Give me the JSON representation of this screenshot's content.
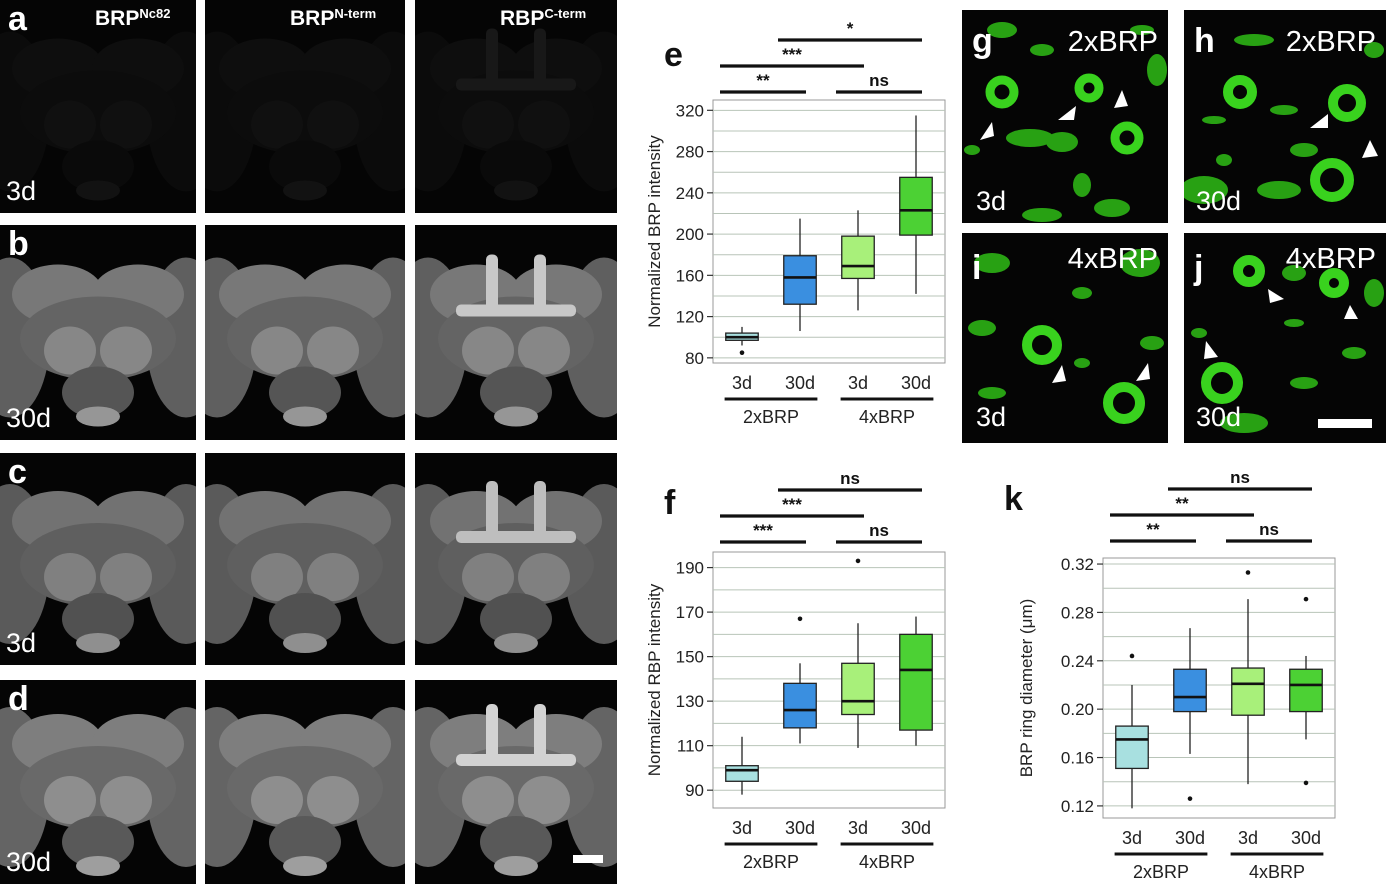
{
  "column_headers": [
    {
      "base": "BRP",
      "sup": "Nc82"
    },
    {
      "base": "BRP",
      "sup": "N-term"
    },
    {
      "base": "RBP",
      "sup": "C-term"
    }
  ],
  "rows": [
    {
      "label": "a",
      "age": "3d",
      "brightness": 0.12
    },
    {
      "label": "b",
      "age": "30d",
      "brightness": 1.0
    },
    {
      "label": "c",
      "age": "3d",
      "brightness": 0.95
    },
    {
      "label": "d",
      "age": "30d",
      "brightness": 1.05
    }
  ],
  "micro_panels": [
    {
      "label": "g",
      "genotype": "2xBRP",
      "age": "3d"
    },
    {
      "label": "h",
      "genotype": "2xBRP",
      "age": "30d"
    },
    {
      "label": "i",
      "genotype": "4xBRP",
      "age": "3d"
    },
    {
      "label": "j",
      "genotype": "4xBRP",
      "age": "30d"
    }
  ],
  "colors": {
    "3d_2xBRP": "#a8e0e0",
    "30d_2xBRP": "#3a8fe0",
    "3d_4xBRP": "#a8f07a",
    "30d_4xBRP": "#4cd134",
    "puncta": "#39d21e",
    "plot_bg": "#ffffff",
    "grid": "#b8c4b8"
  },
  "chart_data": [
    {
      "panel": "e",
      "type": "box",
      "ylabel": "Normalized BRP intensity",
      "yticks": [
        80,
        120,
        160,
        200,
        240,
        280,
        320
      ],
      "ylim": [
        75,
        330
      ],
      "categories": [
        "3d",
        "30d",
        "3d",
        "30d"
      ],
      "groups": [
        "2xBRP",
        "4xBRP"
      ],
      "boxes": [
        {
          "min": 92,
          "q1": 97,
          "median": 100,
          "q3": 104,
          "max": 110,
          "outliers": [
            85
          ]
        },
        {
          "min": 106,
          "q1": 132,
          "median": 158,
          "q3": 179,
          "max": 215,
          "outliers": []
        },
        {
          "min": 126,
          "q1": 157,
          "median": 169,
          "q3": 198,
          "max": 223,
          "outliers": []
        },
        {
          "min": 142,
          "q1": 199,
          "median": 223,
          "q3": 255,
          "max": 315,
          "outliers": []
        }
      ],
      "significance": [
        {
          "label": "**",
          "from": 0,
          "to": 1
        },
        {
          "label": "ns",
          "from": 2,
          "to": 3
        },
        {
          "label": "***",
          "from": 0,
          "to": 2
        },
        {
          "label": "*",
          "from": 1,
          "to": 3
        }
      ]
    },
    {
      "panel": "f",
      "type": "box",
      "ylabel": "Normalized RBP intensity",
      "yticks": [
        90,
        110,
        130,
        150,
        170,
        190
      ],
      "ylim": [
        82,
        197
      ],
      "categories": [
        "3d",
        "30d",
        "3d",
        "30d"
      ],
      "groups": [
        "2xBRP",
        "4xBRP"
      ],
      "boxes": [
        {
          "min": 88,
          "q1": 94,
          "median": 99,
          "q3": 101,
          "max": 114,
          "outliers": []
        },
        {
          "min": 111,
          "q1": 118,
          "median": 126,
          "q3": 138,
          "max": 147,
          "outliers": [
            167
          ]
        },
        {
          "min": 109,
          "q1": 124,
          "median": 130,
          "q3": 147,
          "max": 165,
          "outliers": [
            193
          ]
        },
        {
          "min": 110,
          "q1": 117,
          "median": 144,
          "q3": 160,
          "max": 168,
          "outliers": []
        }
      ],
      "significance": [
        {
          "label": "***",
          "from": 0,
          "to": 1
        },
        {
          "label": "ns",
          "from": 2,
          "to": 3
        },
        {
          "label": "***",
          "from": 0,
          "to": 2
        },
        {
          "label": "ns",
          "from": 1,
          "to": 3
        }
      ]
    },
    {
      "panel": "k",
      "type": "box",
      "ylabel": "BRP ring diameter (μm)",
      "yticks": [
        0.12,
        0.16,
        0.2,
        0.24,
        0.28,
        0.32
      ],
      "ylim": [
        0.11,
        0.325
      ],
      "categories": [
        "3d",
        "30d",
        "3d",
        "30d"
      ],
      "groups": [
        "2xBRP",
        "4xBRP"
      ],
      "boxes": [
        {
          "min": 0.118,
          "q1": 0.151,
          "median": 0.175,
          "q3": 0.186,
          "max": 0.22,
          "outliers": [
            0.244
          ]
        },
        {
          "min": 0.163,
          "q1": 0.198,
          "median": 0.21,
          "q3": 0.233,
          "max": 0.267,
          "outliers": [
            0.126
          ]
        },
        {
          "min": 0.138,
          "q1": 0.195,
          "median": 0.221,
          "q3": 0.234,
          "max": 0.291,
          "outliers": [
            0.313
          ]
        },
        {
          "min": 0.175,
          "q1": 0.198,
          "median": 0.22,
          "q3": 0.233,
          "max": 0.244,
          "outliers": [
            0.291,
            0.139
          ]
        }
      ],
      "significance": [
        {
          "label": "**",
          "from": 0,
          "to": 1
        },
        {
          "label": "ns",
          "from": 2,
          "to": 3
        },
        {
          "label": "**",
          "from": 0,
          "to": 2
        },
        {
          "label": "ns",
          "from": 1,
          "to": 3
        }
      ]
    }
  ]
}
